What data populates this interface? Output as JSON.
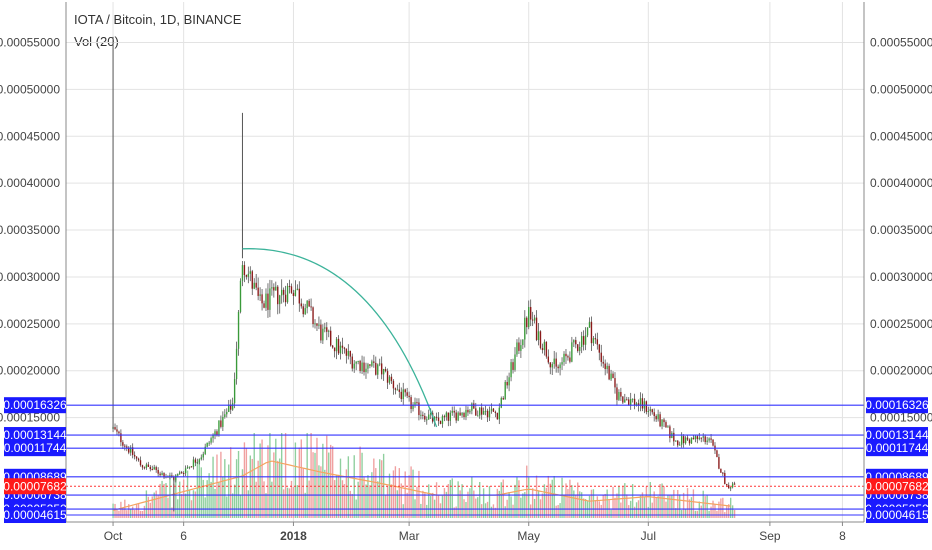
{
  "header": {
    "title": "IOTA / Bitcoin, 1D, BINANCE",
    "indicator": "Vol (20)"
  },
  "colors": {
    "up": "#3a9a3a",
    "down": "#8b1a1a",
    "vol_up": "#8fcf9e",
    "vol_down": "#f0a0a0",
    "vol_ma": "#f4a460",
    "level_line": "#3333ff",
    "price_line": "#ff3333",
    "arc": "#3cb39a",
    "tag_bg": "#1a1aff",
    "tag_price_bg": "#ff1a1a",
    "grid": "#e3e3e3"
  },
  "chart_data": {
    "type": "candlestick",
    "title": "IOTA / Bitcoin, 1D, BINANCE",
    "grid": true,
    "yticks": [
      "0.00055000",
      "0.00050000",
      "0.00045000",
      "0.00040000",
      "0.00035000",
      "0.00030000",
      "0.00025000",
      "0.00020000",
      "0.00015000"
    ],
    "ylim": [
      3.55e-05,
      0.000558
    ],
    "xticks": [
      "Oct",
      "6",
      "2018",
      "Mar",
      "May",
      "Jul",
      "Sep",
      "8"
    ],
    "levels": [
      "0.00016326",
      "0.00013144",
      "0.00011744",
      "0.00008689",
      "0.00006738",
      "0.00005252",
      "0.00004615"
    ],
    "current_price": "0.00007682",
    "volume_ma_period": 20,
    "series": [
      {
        "name": "IOTA / Bitcoin",
        "dates": [
          "2017-10-01",
          "2017-10-15",
          "2017-11-01",
          "2017-11-15",
          "2017-12-01",
          "2017-12-06",
          "2017-12-15",
          "2018-01-01",
          "2018-01-15",
          "2018-02-01",
          "2018-02-15",
          "2018-03-01",
          "2018-03-15",
          "2018-04-01",
          "2018-04-15",
          "2018-05-01",
          "2018-05-15",
          "2018-06-01",
          "2018-06-15",
          "2018-07-01",
          "2018-07-15",
          "2018-08-01",
          "2018-08-10",
          "2018-08-14"
        ],
        "close": [
          0.000138,
          0.0001,
          8.5e-05,
          0.00011,
          0.000165,
          0.00032,
          0.00027,
          0.00029,
          0.00024,
          0.00021,
          0.0002,
          0.000165,
          0.000145,
          0.00016,
          0.000155,
          0.00026,
          0.0002,
          0.000245,
          0.000175,
          0.00016,
          0.000125,
          0.000128,
          7.7e-05,
          7.9e-05
        ]
      },
      {
        "name": "Volume MA",
        "dates": [
          "2017-10-01",
          "2017-12-06",
          "2017-12-20",
          "2018-01-15",
          "2018-02-15",
          "2018-03-15",
          "2018-04-15",
          "2018-05-01",
          "2018-06-01",
          "2018-07-01",
          "2018-08-14"
        ],
        "values": [
          0.1,
          0.55,
          0.75,
          0.6,
          0.45,
          0.3,
          0.3,
          0.38,
          0.22,
          0.28,
          0.15
        ]
      }
    ]
  }
}
